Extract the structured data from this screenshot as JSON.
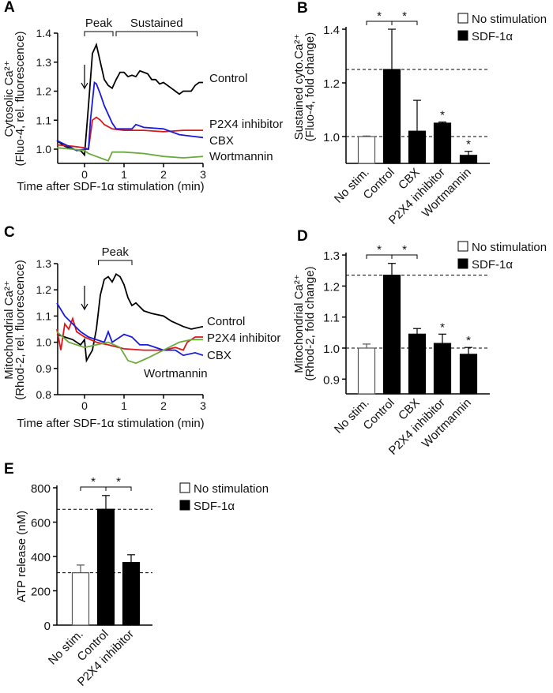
{
  "chart_data": [
    {
      "panel": "A",
      "type": "line",
      "xlabel": "Time after SDF-1α stimulation (min)",
      "ylabel": [
        "Cytosolic Ca²⁺",
        "(Fluo-4, rel. fluorescence)"
      ],
      "xlim": [
        -0.7,
        3
      ],
      "ylim": [
        0.95,
        1.4
      ],
      "xticks": [
        "0",
        "1",
        "2",
        "3"
      ],
      "yticks": [
        "1.0",
        "1.1",
        "1.2",
        "1.3",
        "1.4"
      ],
      "annotations": {
        "peak": "Peak",
        "sustained": "Sustained",
        "stimulus_arrow_at": 0
      },
      "series": [
        {
          "name": "Control",
          "color": "#000000",
          "x": [
            -0.7,
            -0.5,
            -0.3,
            -0.1,
            0,
            0.1,
            0.2,
            0.3,
            0.4,
            0.5,
            0.6,
            0.7,
            0.8,
            0.9,
            1.0,
            1.1,
            1.2,
            1.3,
            1.4,
            1.5,
            1.6,
            1.7,
            1.8,
            1.9,
            2.0,
            2.1,
            2.2,
            2.3,
            2.4,
            2.5,
            2.6,
            2.7,
            2.8,
            2.9,
            3.0
          ],
          "y": [
            1.03,
            1.01,
            1.0,
            0.995,
            0.98,
            1.15,
            1.33,
            1.36,
            1.3,
            1.24,
            1.22,
            1.21,
            1.24,
            1.265,
            1.265,
            1.25,
            1.255,
            1.25,
            1.27,
            1.265,
            1.26,
            1.24,
            1.24,
            1.225,
            1.23,
            1.22,
            1.21,
            1.2,
            1.19,
            1.2,
            1.2,
            1.2,
            1.22,
            1.23,
            1.23
          ]
        },
        {
          "name": "P2X4 inhibitor",
          "color": "#d7191c",
          "x": [
            -0.7,
            -0.3,
            0,
            0.1,
            0.2,
            0.3,
            0.4,
            0.5,
            0.7,
            1.0,
            1.5,
            2.0,
            2.5,
            3.0
          ],
          "y": [
            1.015,
            1.01,
            1.005,
            1.0,
            1.1,
            1.11,
            1.1,
            1.085,
            1.07,
            1.065,
            1.065,
            1.06,
            1.065,
            1.065
          ]
        },
        {
          "name": "CBX",
          "color": "#1a1adb",
          "x": [
            -0.7,
            -0.4,
            -0.2,
            0,
            0.1,
            0.15,
            0.25,
            0.3,
            0.4,
            0.5,
            0.6,
            0.7,
            0.8,
            1.0,
            1.2,
            1.3,
            1.5,
            2.0,
            2.4,
            2.7,
            3.0
          ],
          "y": [
            1.03,
            1.01,
            0.995,
            1.0,
            1.0,
            1.1,
            1.23,
            1.225,
            1.19,
            1.15,
            1.12,
            1.09,
            1.07,
            1.07,
            1.07,
            1.085,
            1.075,
            1.07,
            1.05,
            1.045,
            1.04
          ]
        },
        {
          "name": "Wortmannin",
          "color": "#6aaa3a",
          "x": [
            -0.7,
            -0.3,
            0,
            0.1,
            0.3,
            0.5,
            0.6,
            0.7,
            1.0,
            1.5,
            2.0,
            2.5,
            3.0
          ],
          "y": [
            1.005,
            1.0,
            0.995,
            0.985,
            0.975,
            0.965,
            0.96,
            0.99,
            0.99,
            0.985,
            0.975,
            0.97,
            0.975
          ]
        }
      ]
    },
    {
      "panel": "B",
      "type": "bar",
      "ylabel": [
        "Sustained cyto.Ca²⁺",
        "(Fluo-4, fold change)"
      ],
      "ylim": [
        0.9,
        1.4
      ],
      "yticks": [
        "1.0",
        "1.2",
        "1.4"
      ],
      "categories": [
        "No stim.",
        "Control",
        "CBX",
        "P2X4 inhibitor",
        "Wortmannin"
      ],
      "groups": [
        "No stimulation",
        "SDF-1α",
        "SDF-1α",
        "SDF-1α",
        "SDF-1α"
      ],
      "values": [
        1.0,
        1.25,
        1.02,
        1.05,
        0.93
      ],
      "errors": [
        0.002,
        0.15,
        0.115,
        0.004,
        0.015
      ],
      "reference_lines": [
        1.25,
        1.0
      ],
      "significance": {
        "brackets": [
          [
            "No stim.",
            "Control"
          ],
          [
            "Control",
            "CBX"
          ]
        ],
        "stars_on": [
          "P2X4 inhibitor",
          "Wortmannin"
        ],
        "mark": "*"
      },
      "legend": [
        "No stimulation",
        "SDF-1α"
      ],
      "legend_position": "top-right"
    },
    {
      "panel": "C",
      "type": "line",
      "xlabel": "Time after SDF-1α stimulation (min)",
      "ylabel": [
        "Mitochondrial Ca²⁺",
        "(Rhod-2, rel. fluorescence)"
      ],
      "xlim": [
        -0.7,
        3
      ],
      "ylim": [
        0.8,
        1.3
      ],
      "xticks": [
        "0",
        "1",
        "2",
        "3"
      ],
      "yticks": [
        "0.8",
        "0.9",
        "1.0",
        "1.1",
        "1.2",
        "1.3"
      ],
      "annotations": {
        "peak": "Peak",
        "stimulus_arrow_at": 0
      },
      "series": [
        {
          "name": "Control",
          "color": "#000000",
          "x": [
            -0.7,
            -0.5,
            -0.3,
            -0.1,
            0,
            0.05,
            0.2,
            0.3,
            0.4,
            0.5,
            0.6,
            0.7,
            0.8,
            0.9,
            1.0,
            1.1,
            1.2,
            1.3,
            1.5,
            1.7,
            2.0,
            2.2,
            2.5,
            2.7,
            3.0
          ],
          "y": [
            1.03,
            1.02,
            1.01,
            0.99,
            1.01,
            0.93,
            0.97,
            1.05,
            1.18,
            1.24,
            1.25,
            1.23,
            1.26,
            1.25,
            1.22,
            1.17,
            1.14,
            1.15,
            1.12,
            1.11,
            1.1,
            1.08,
            1.06,
            1.05,
            1.06
          ]
        },
        {
          "name": "P2X4 inhibitor",
          "color": "#d7191c",
          "x": [
            -0.7,
            -0.6,
            -0.5,
            -0.4,
            -0.3,
            -0.2,
            0,
            0.3,
            0.6,
            1.0,
            1.5,
            2.0,
            2.3,
            2.5,
            2.6,
            2.8,
            3.0
          ],
          "y": [
            1.05,
            0.97,
            1.07,
            1.05,
            1.09,
            1.04,
            1.02,
            1.0,
            0.99,
            0.975,
            0.97,
            0.97,
            0.98,
            0.97,
            1.0,
            1.02,
            1.02
          ]
        },
        {
          "name": "CBX",
          "color": "#1a1adb",
          "x": [
            -0.7,
            -0.5,
            -0.3,
            -0.1,
            0.1,
            0.3,
            0.5,
            0.6,
            0.7,
            0.9,
            1.0,
            1.2,
            1.4,
            1.6,
            2.0,
            2.3,
            2.5,
            2.8,
            3.0
          ],
          "y": [
            1.15,
            1.1,
            1.07,
            1.04,
            1.02,
            1.01,
            1.0,
            1.04,
            1.0,
            1.02,
            1.03,
            1.02,
            0.99,
            0.99,
            0.97,
            0.97,
            0.95,
            0.96,
            0.95
          ]
        },
        {
          "name": "Wortmannin",
          "color": "#6aaa3a",
          "x": [
            -0.7,
            -0.4,
            0,
            0.3,
            0.6,
            0.9,
            1.1,
            1.3,
            1.6,
            2.0,
            2.4,
            2.7,
            3.0
          ],
          "y": [
            1.04,
            1.0,
            0.98,
            0.99,
            1.0,
            0.98,
            0.93,
            0.92,
            0.94,
            0.97,
            1.0,
            1.01,
            1.01
          ]
        }
      ]
    },
    {
      "panel": "D",
      "type": "bar",
      "ylabel": [
        "Mitochondrial Ca²⁺",
        "(Rhod-2, fold change)"
      ],
      "ylim": [
        0.85,
        1.3
      ],
      "yticks": [
        "0.9",
        "1.0",
        "1.1",
        "1.2",
        "1.3"
      ],
      "categories": [
        "No stim.",
        "Control",
        "CBX",
        "P2X4 inhibitor",
        "Wortmannin"
      ],
      "groups": [
        "No stimulation",
        "SDF-1α",
        "SDF-1α",
        "SDF-1α",
        "SDF-1α"
      ],
      "values": [
        1.0,
        1.235,
        1.045,
        1.015,
        0.98
      ],
      "errors": [
        0.013,
        0.038,
        0.018,
        0.03,
        0.022
      ],
      "reference_lines": [
        1.235,
        1.0
      ],
      "significance": {
        "brackets": [
          [
            "No stim.",
            "Control"
          ],
          [
            "Control",
            "CBX"
          ]
        ],
        "stars_on": [
          "P2X4 inhibitor",
          "Wortmannin"
        ],
        "mark": "*"
      },
      "legend": [
        "No stimulation",
        "SDF-1α"
      ],
      "legend_position": "top-right"
    },
    {
      "panel": "E",
      "type": "bar",
      "ylabel": [
        "ATP release (nM)"
      ],
      "ylim": [
        0,
        800
      ],
      "yticks": [
        "0",
        "200",
        "400",
        "600",
        "800"
      ],
      "categories": [
        "No stim.",
        "Control",
        "P2X4 inhibitor"
      ],
      "groups": [
        "No stimulation",
        "SDF-1α",
        "SDF-1α"
      ],
      "values": [
        305,
        675,
        365
      ],
      "errors": [
        45,
        80,
        45
      ],
      "reference_lines": [
        675,
        305
      ],
      "significance": {
        "brackets": [
          [
            "No stim.",
            "Control"
          ],
          [
            "Control",
            "P2X4 inhibitor"
          ]
        ],
        "stars_on": [],
        "mark": "*"
      },
      "legend": [
        "No stimulation",
        "SDF-1α"
      ],
      "legend_position": "right"
    }
  ]
}
